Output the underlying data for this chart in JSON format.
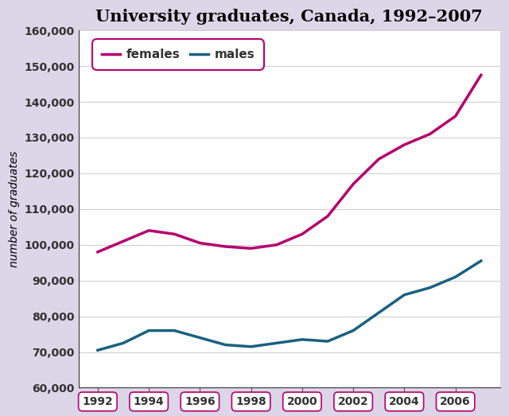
{
  "title": "University graduates, Canada, 1992–2007",
  "ylabel": "number of graduates",
  "background_color": "#ddd5e8",
  "plot_background": "#ffffff",
  "years": [
    1992,
    1993,
    1994,
    1995,
    1996,
    1997,
    1998,
    1999,
    2000,
    2001,
    2002,
    2003,
    2004,
    2005,
    2006,
    2007
  ],
  "females": [
    98000,
    101000,
    104000,
    103000,
    100500,
    99500,
    99000,
    100000,
    103000,
    108000,
    117000,
    124000,
    128000,
    131000,
    136000,
    147500
  ],
  "males": [
    70500,
    72500,
    76000,
    76000,
    74000,
    72000,
    71500,
    72500,
    73500,
    73000,
    76000,
    81000,
    86000,
    88000,
    91000,
    95500
  ],
  "female_color": "#b5006e",
  "male_color": "#1a6080",
  "ylim": [
    60000,
    160000
  ],
  "yticks": [
    60000,
    70000,
    80000,
    90000,
    100000,
    110000,
    120000,
    130000,
    140000,
    150000,
    160000
  ],
  "xticks": [
    1992,
    1994,
    1996,
    1998,
    2000,
    2002,
    2004,
    2006
  ],
  "title_fontsize": 15,
  "axis_label_fontsize": 10,
  "tick_label_fontsize": 10,
  "line_width": 2.5,
  "legend_labels": [
    "females",
    "males"
  ]
}
